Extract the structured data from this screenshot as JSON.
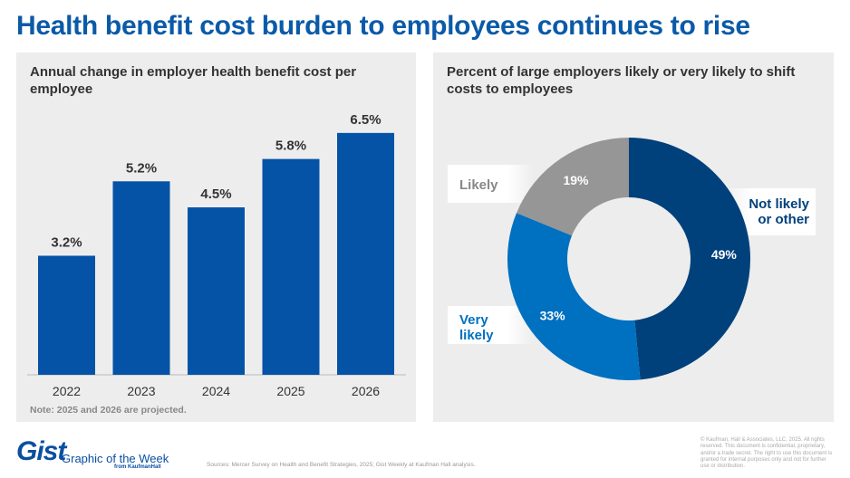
{
  "title": "Health benefit cost burden to employees continues to rise",
  "colors": {
    "bar": "#0553a6",
    "title": "#0a5aa8",
    "not_likely": "#00417c",
    "very_likely": "#0070c0",
    "likely": "#969696"
  },
  "chart_data": [
    {
      "type": "bar",
      "title": "Annual change in employer health benefit cost per employee",
      "categories": [
        "2022",
        "2023",
        "2024",
        "2025",
        "2026"
      ],
      "values": [
        3.2,
        5.2,
        4.5,
        5.8,
        6.5
      ],
      "data_labels": [
        "3.2%",
        "5.2%",
        "4.5%",
        "5.8%",
        "6.5%"
      ],
      "note": "Note: 2025 and 2026 are projected.",
      "ylim": [
        0,
        6.5
      ],
      "grid": false
    },
    {
      "type": "pie",
      "title": "Percent of large employers likely or very likely to shift costs to employees",
      "donut": true,
      "slices": [
        {
          "name": "Not likely or other",
          "name_lines": [
            "Not likely",
            "or other"
          ],
          "value": 49,
          "label": "49%",
          "color": "#00417c"
        },
        {
          "name": "Very likely",
          "name_lines": [
            "Very",
            "likely"
          ],
          "value": 33,
          "label": "33%",
          "color": "#0070c0"
        },
        {
          "name": "Likely",
          "name_lines": [
            "Likely"
          ],
          "value": 19,
          "label": "19%",
          "color": "#969696"
        }
      ]
    }
  ],
  "footer": {
    "logo": "Gist",
    "logo_sub": "Graphic of the Week",
    "logo_from": "from KaufmanHall",
    "sources": "Sources: Mercer Survey on Health and Benefit Strategies, 2025; Gist Weekly at Kaufman Hall analysis.",
    "copyright": "© Kaufman, Hall & Associates, LLC, 2025. All rights reserved. This document is confidential, proprietary, and/or a trade secret. The right to use this document is granted for internal purposes only and not for further use or distribution."
  }
}
